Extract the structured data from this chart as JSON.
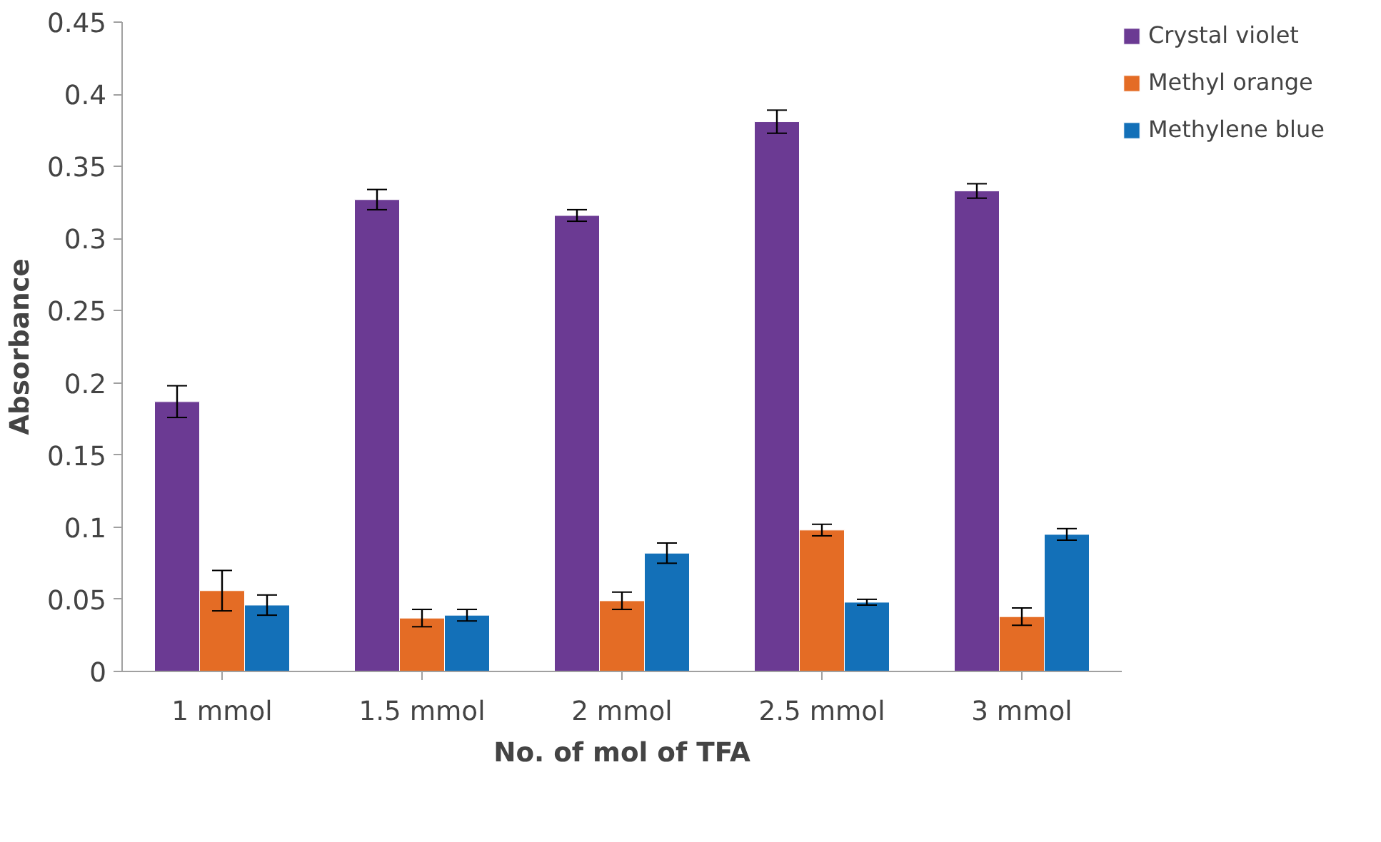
{
  "chart_data": {
    "type": "bar",
    "xlabel": "No. of mol of TFA",
    "ylabel": "Absorbance",
    "categories": [
      "1 mmol",
      "1.5 mmol",
      "2 mmol",
      "2.5 mmol",
      "3 mmol"
    ],
    "series": [
      {
        "name": "Crystal violet",
        "color": "#6b3a93",
        "values": [
          0.187,
          0.327,
          0.316,
          0.381,
          0.333
        ],
        "errors": [
          0.011,
          0.007,
          0.004,
          0.008,
          0.005
        ]
      },
      {
        "name": "Methyl orange",
        "color": "#e46c25",
        "values": [
          0.056,
          0.037,
          0.049,
          0.098,
          0.038
        ],
        "errors": [
          0.014,
          0.006,
          0.006,
          0.004,
          0.006
        ]
      },
      {
        "name": "Methylene blue",
        "color": "#1370b8",
        "values": [
          0.046,
          0.039,
          0.082,
          0.048,
          0.095
        ],
        "errors": [
          0.007,
          0.004,
          0.007,
          0.002,
          0.004
        ]
      }
    ],
    "ylim": [
      0,
      0.45
    ],
    "yticks": [
      0,
      0.05,
      0.1,
      0.15,
      0.2,
      0.25,
      0.3,
      0.35,
      0.4,
      0.45
    ],
    "grid": false,
    "legend": "right"
  }
}
